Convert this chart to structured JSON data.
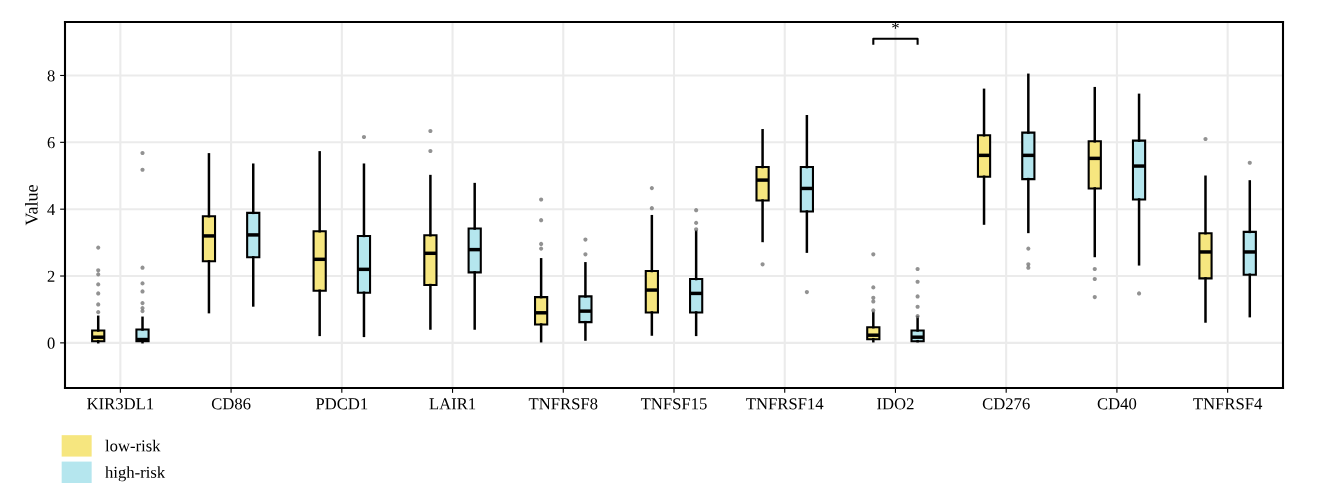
{
  "chart_data": {
    "type": "box",
    "ylabel": "Value",
    "categories": [
      "KIR3DL1",
      "CD86",
      "PDCD1",
      "LAIR1",
      "TNFRSF8",
      "TNFSF15",
      "TNFRSF14",
      "IDO2",
      "CD276",
      "CD40",
      "TNFRSF4"
    ],
    "ylim": [
      -1.35,
      9.6
    ],
    "yticks": [
      0,
      2,
      4,
      6,
      8
    ],
    "grid": true,
    "legend": "bottom left",
    "annotations": [
      "*"
    ],
    "series": [
      {
        "name": "low-risk",
        "color": "#f6e67f",
        "boxes": [
          {
            "low": 0.02,
            "q1": 0.05,
            "median": 0.17,
            "q3": 0.37,
            "high": 0.78,
            "outliers": [
              2.85,
              2.17,
              2.05,
              1.75,
              1.48,
              1.15,
              0.92
            ]
          },
          {
            "low": 0.92,
            "q1": 2.44,
            "median": 3.2,
            "q3": 3.79,
            "high": 5.64
          },
          {
            "low": 0.24,
            "q1": 1.56,
            "median": 2.5,
            "q3": 3.34,
            "high": 5.7
          },
          {
            "low": 0.43,
            "q1": 1.73,
            "median": 2.68,
            "q3": 3.22,
            "high": 4.99,
            "outliers": [
              6.34,
              5.74
            ]
          },
          {
            "low": 0.05,
            "q1": 0.55,
            "median": 0.9,
            "q3": 1.37,
            "high": 2.5,
            "outliers": [
              4.29,
              3.67,
              2.96,
              2.82
            ]
          },
          {
            "low": 0.25,
            "q1": 0.91,
            "median": 1.58,
            "q3": 2.15,
            "high": 3.79,
            "outliers": [
              4.63,
              4.03
            ]
          },
          {
            "low": 3.05,
            "q1": 4.26,
            "median": 4.87,
            "q3": 5.26,
            "high": 6.36,
            "outliers": [
              2.35
            ]
          },
          {
            "low": 0.05,
            "q1": 0.11,
            "median": 0.23,
            "q3": 0.47,
            "high": 0.9,
            "outliers": [
              2.65,
              1.66,
              1.35,
              1.24,
              0.97
            ]
          },
          {
            "low": 3.57,
            "q1": 4.97,
            "median": 5.61,
            "q3": 6.21,
            "high": 7.57
          },
          {
            "low": 2.6,
            "q1": 4.62,
            "median": 5.52,
            "q3": 6.03,
            "high": 7.62,
            "outliers": [
              2.21,
              1.91,
              1.37
            ]
          },
          {
            "low": 0.64,
            "q1": 1.93,
            "median": 2.72,
            "q3": 3.28,
            "high": 4.97,
            "outliers": [
              6.1
            ]
          }
        ]
      },
      {
        "name": "high-risk",
        "color": "#b5e6ee",
        "boxes": [
          {
            "low": 0.02,
            "q1": 0.05,
            "median": 0.1,
            "q3": 0.4,
            "high": 0.75,
            "outliers": [
              5.68,
              5.18,
              2.25,
              1.78,
              1.54,
              1.19,
              1.04,
              0.95
            ]
          },
          {
            "low": 1.12,
            "q1": 2.56,
            "median": 3.23,
            "q3": 3.89,
            "high": 5.33
          },
          {
            "low": 0.21,
            "q1": 1.5,
            "median": 2.2,
            "q3": 3.2,
            "high": 5.33,
            "outliers": [
              6.16
            ]
          },
          {
            "low": 0.43,
            "q1": 2.11,
            "median": 2.79,
            "q3": 3.42,
            "high": 4.75
          },
          {
            "low": 0.1,
            "q1": 0.62,
            "median": 0.95,
            "q3": 1.39,
            "high": 2.38,
            "outliers": [
              3.09,
              2.65
            ]
          },
          {
            "low": 0.24,
            "q1": 0.91,
            "median": 1.48,
            "q3": 1.91,
            "high": 3.34,
            "outliers": [
              3.97,
              3.59,
              3.4
            ]
          },
          {
            "low": 2.73,
            "q1": 3.93,
            "median": 4.62,
            "q3": 5.26,
            "high": 6.78,
            "outliers": [
              1.52
            ]
          },
          {
            "low": 0.05,
            "q1": 0.05,
            "median": 0.17,
            "q3": 0.37,
            "high": 0.77,
            "outliers": [
              2.21,
              1.83,
              1.39,
              1.08,
              0.8
            ]
          },
          {
            "low": 3.32,
            "q1": 4.9,
            "median": 5.61,
            "q3": 6.29,
            "high": 8.02,
            "outliers": [
              2.82,
              2.35,
              2.25
            ]
          },
          {
            "low": 2.35,
            "q1": 4.29,
            "median": 5.29,
            "q3": 6.05,
            "high": 7.42,
            "outliers": [
              1.48
            ]
          },
          {
            "low": 0.8,
            "q1": 2.04,
            "median": 2.72,
            "q3": 3.32,
            "high": 4.83,
            "outliers": [
              5.39
            ]
          }
        ]
      }
    ]
  }
}
